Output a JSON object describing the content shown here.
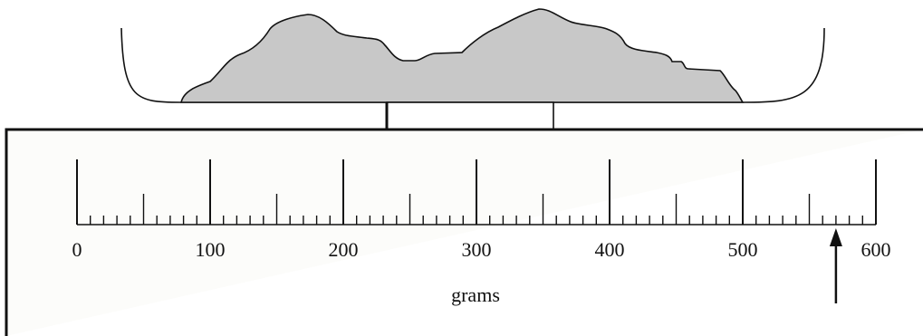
{
  "scale": {
    "unit": "grams",
    "min": 0,
    "max": 600,
    "major_step": 100,
    "mid_step": 50,
    "minor_step": 10,
    "tick_labels": [
      "0",
      "100",
      "200",
      "300",
      "400",
      "500",
      "600"
    ],
    "reading_value": 570
  },
  "colors": {
    "mass_fill": "#c8c8c8",
    "line": "#111111",
    "panel_background": "#fcfcfa"
  }
}
